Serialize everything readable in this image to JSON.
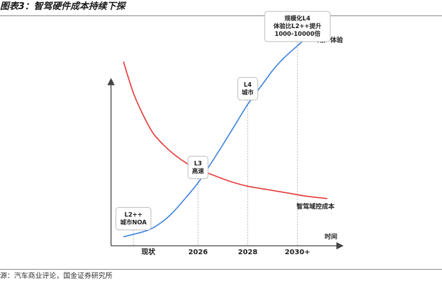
{
  "figure": {
    "title": "图表3：智驾硬件成本持续下探",
    "source": "源：汽车商业评论，国金证券研究所"
  },
  "chart_data": {
    "type": "line",
    "title": "图表3：智驾硬件成本持续下探",
    "xlabel": "时间",
    "ylabel": "",
    "x_ticks": [
      "现状",
      "2026",
      "2028",
      "2030+"
    ],
    "xlim": [
      -0.75,
      3.9
    ],
    "ylim": [
      0,
      100
    ],
    "grid": false,
    "series": [
      {
        "name": "用户体验",
        "color": "#3b82e0",
        "x": [
          -0.5,
          0,
          0.3,
          0.5,
          0.7,
          1.0,
          1.3,
          1.5,
          1.75,
          2.0,
          2.3,
          2.5,
          2.7,
          3.0,
          3.3,
          3.6
        ],
        "y": [
          4,
          7,
          11,
          15,
          20,
          28,
          38,
          45,
          54,
          63,
          72,
          78,
          83,
          89,
          95,
          100
        ]
      },
      {
        "name": "智驾域控成本",
        "color": "#e53935",
        "x": [
          -0.5,
          -0.3,
          -0.1,
          0.1,
          0.3,
          0.5,
          0.75,
          1.0,
          1.3,
          1.6,
          2.0,
          2.4,
          2.8,
          3.2,
          3.6
        ],
        "y": [
          82,
          68,
          58,
          50,
          45,
          41,
          37,
          34,
          31.5,
          29,
          26.5,
          25,
          23.5,
          22,
          21
        ]
      }
    ],
    "stages": [
      {
        "x": -0.3,
        "lines": [
          "L2++",
          "城市NOA"
        ]
      },
      {
        "x": 1.0,
        "lines": [
          "L3",
          "高速"
        ]
      },
      {
        "x": 2.0,
        "lines": [
          "L4",
          "城市"
        ]
      },
      {
        "x": 3.0,
        "lines": [
          "规模化L4",
          "体验比L2++提升",
          "1000-10000倍"
        ]
      }
    ]
  }
}
